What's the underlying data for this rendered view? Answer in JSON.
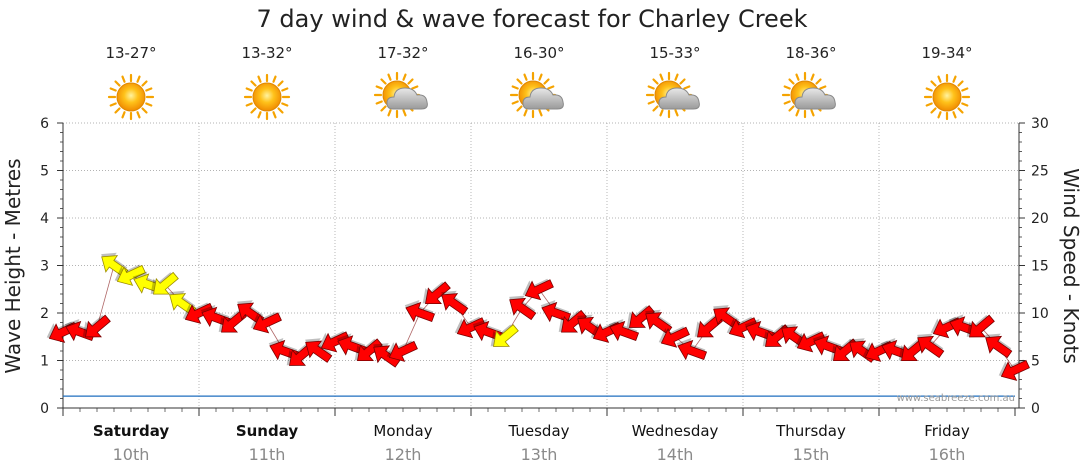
{
  "chart_data": {
    "type": "line",
    "title": "7 day wind & wave forecast for Charley Creek",
    "ylabel_left": "Wave Height - Metres",
    "ylabel_right": "Wind Speed - Knots",
    "ylim_left": [
      0,
      6
    ],
    "ylim_right": [
      0,
      30
    ],
    "left_ticks": [
      "0",
      "1",
      "2",
      "3",
      "4",
      "5",
      "6"
    ],
    "right_ticks": [
      "0",
      "5",
      "10",
      "15",
      "20",
      "25",
      "30"
    ],
    "grid": true,
    "watermark": "www.seabreeze.com.au",
    "days": [
      {
        "name": "Saturday",
        "date": "10th",
        "temp": "13-27°",
        "weather": "sun-icon",
        "bold": true
      },
      {
        "name": "Sunday",
        "date": "11th",
        "temp": "13-32°",
        "weather": "sun-icon",
        "bold": true
      },
      {
        "name": "Monday",
        "date": "12th",
        "temp": "17-32°",
        "weather": "sun-cloud-icon",
        "bold": false
      },
      {
        "name": "Tuesday",
        "date": "13th",
        "temp": "16-30°",
        "weather": "sun-cloud-icon",
        "bold": false
      },
      {
        "name": "Wednesday",
        "date": "14th",
        "temp": "15-33°",
        "weather": "sun-cloud-icon",
        "bold": false
      },
      {
        "name": "Thursday",
        "date": "15th",
        "temp": "18-36°",
        "weather": "sun-cloud-icon",
        "bold": false
      },
      {
        "name": "Friday",
        "date": "16th",
        "temp": "19-34°",
        "weather": "sun-icon",
        "bold": false
      }
    ],
    "wave_height": {
      "name": "Wave Height (m)",
      "color": "#1f6fbf",
      "x_days": [
        0.0,
        0.25,
        0.5,
        0.75,
        1.0,
        1.25,
        1.5,
        1.75,
        2.0,
        2.25,
        2.5,
        2.75,
        3.0,
        3.25,
        3.5,
        3.75,
        4.0,
        4.25,
        4.5,
        4.75,
        5.0,
        5.25,
        5.5,
        5.75,
        6.0,
        6.25,
        6.5,
        6.75,
        7.0
      ],
      "values": [
        0.25,
        0.25,
        0.25,
        0.25,
        0.25,
        0.25,
        0.25,
        0.25,
        0.25,
        0.25,
        0.25,
        0.25,
        0.25,
        0.25,
        0.25,
        0.25,
        0.25,
        0.25,
        0.25,
        0.25,
        0.25,
        0.25,
        0.25,
        0.25,
        0.25,
        0.25,
        0.25,
        0.25,
        0.25
      ]
    },
    "wind_speed": {
      "name": "Wind Speed (knots)",
      "color_strong": "#ff0000",
      "color_light": "#ffff00",
      "x_days": [
        0.0,
        0.125,
        0.25,
        0.375,
        0.5,
        0.625,
        0.75,
        0.875,
        1.0,
        1.125,
        1.25,
        1.375,
        1.5,
        1.625,
        1.75,
        1.875,
        2.0,
        2.125,
        2.25,
        2.375,
        2.5,
        2.625,
        2.75,
        2.875,
        3.0,
        3.125,
        3.25,
        3.375,
        3.5,
        3.625,
        3.75,
        3.875,
        4.0,
        4.125,
        4.25,
        4.375,
        4.5,
        4.625,
        4.75,
        4.875,
        5.0,
        5.125,
        5.25,
        5.375,
        5.5,
        5.625,
        5.75,
        5.875,
        6.0,
        6.125,
        6.25,
        6.375,
        6.5,
        6.625,
        6.75,
        6.875,
        7.0
      ],
      "values": [
        8,
        8,
        8.5,
        15,
        14,
        13,
        13,
        11,
        10,
        9.5,
        9,
        10,
        9,
        6,
        5.5,
        6,
        7,
        6.5,
        6,
        5.5,
        6,
        10,
        12,
        11,
        8.5,
        8,
        7.5,
        10.5,
        12.5,
        10,
        9,
        8.5,
        8,
        8,
        9.5,
        9,
        7.5,
        6,
        8.5,
        9.5,
        8.5,
        8,
        7.5,
        7.5,
        7,
        6.5,
        6,
        6,
        6,
        6,
        6,
        6.5,
        8.5,
        8.5,
        8.5,
        6.5,
        4
      ],
      "light_wind": [
        false,
        false,
        false,
        true,
        true,
        true,
        true,
        true,
        false,
        false,
        false,
        false,
        false,
        false,
        false,
        false,
        false,
        false,
        false,
        false,
        false,
        false,
        false,
        false,
        false,
        false,
        true,
        false,
        false,
        false,
        false,
        false,
        false,
        false,
        false,
        false,
        false,
        false,
        false,
        false,
        false,
        false,
        false,
        false,
        false,
        false,
        false,
        false,
        false,
        false,
        false,
        false,
        false,
        false,
        false,
        false,
        false
      ]
    }
  }
}
